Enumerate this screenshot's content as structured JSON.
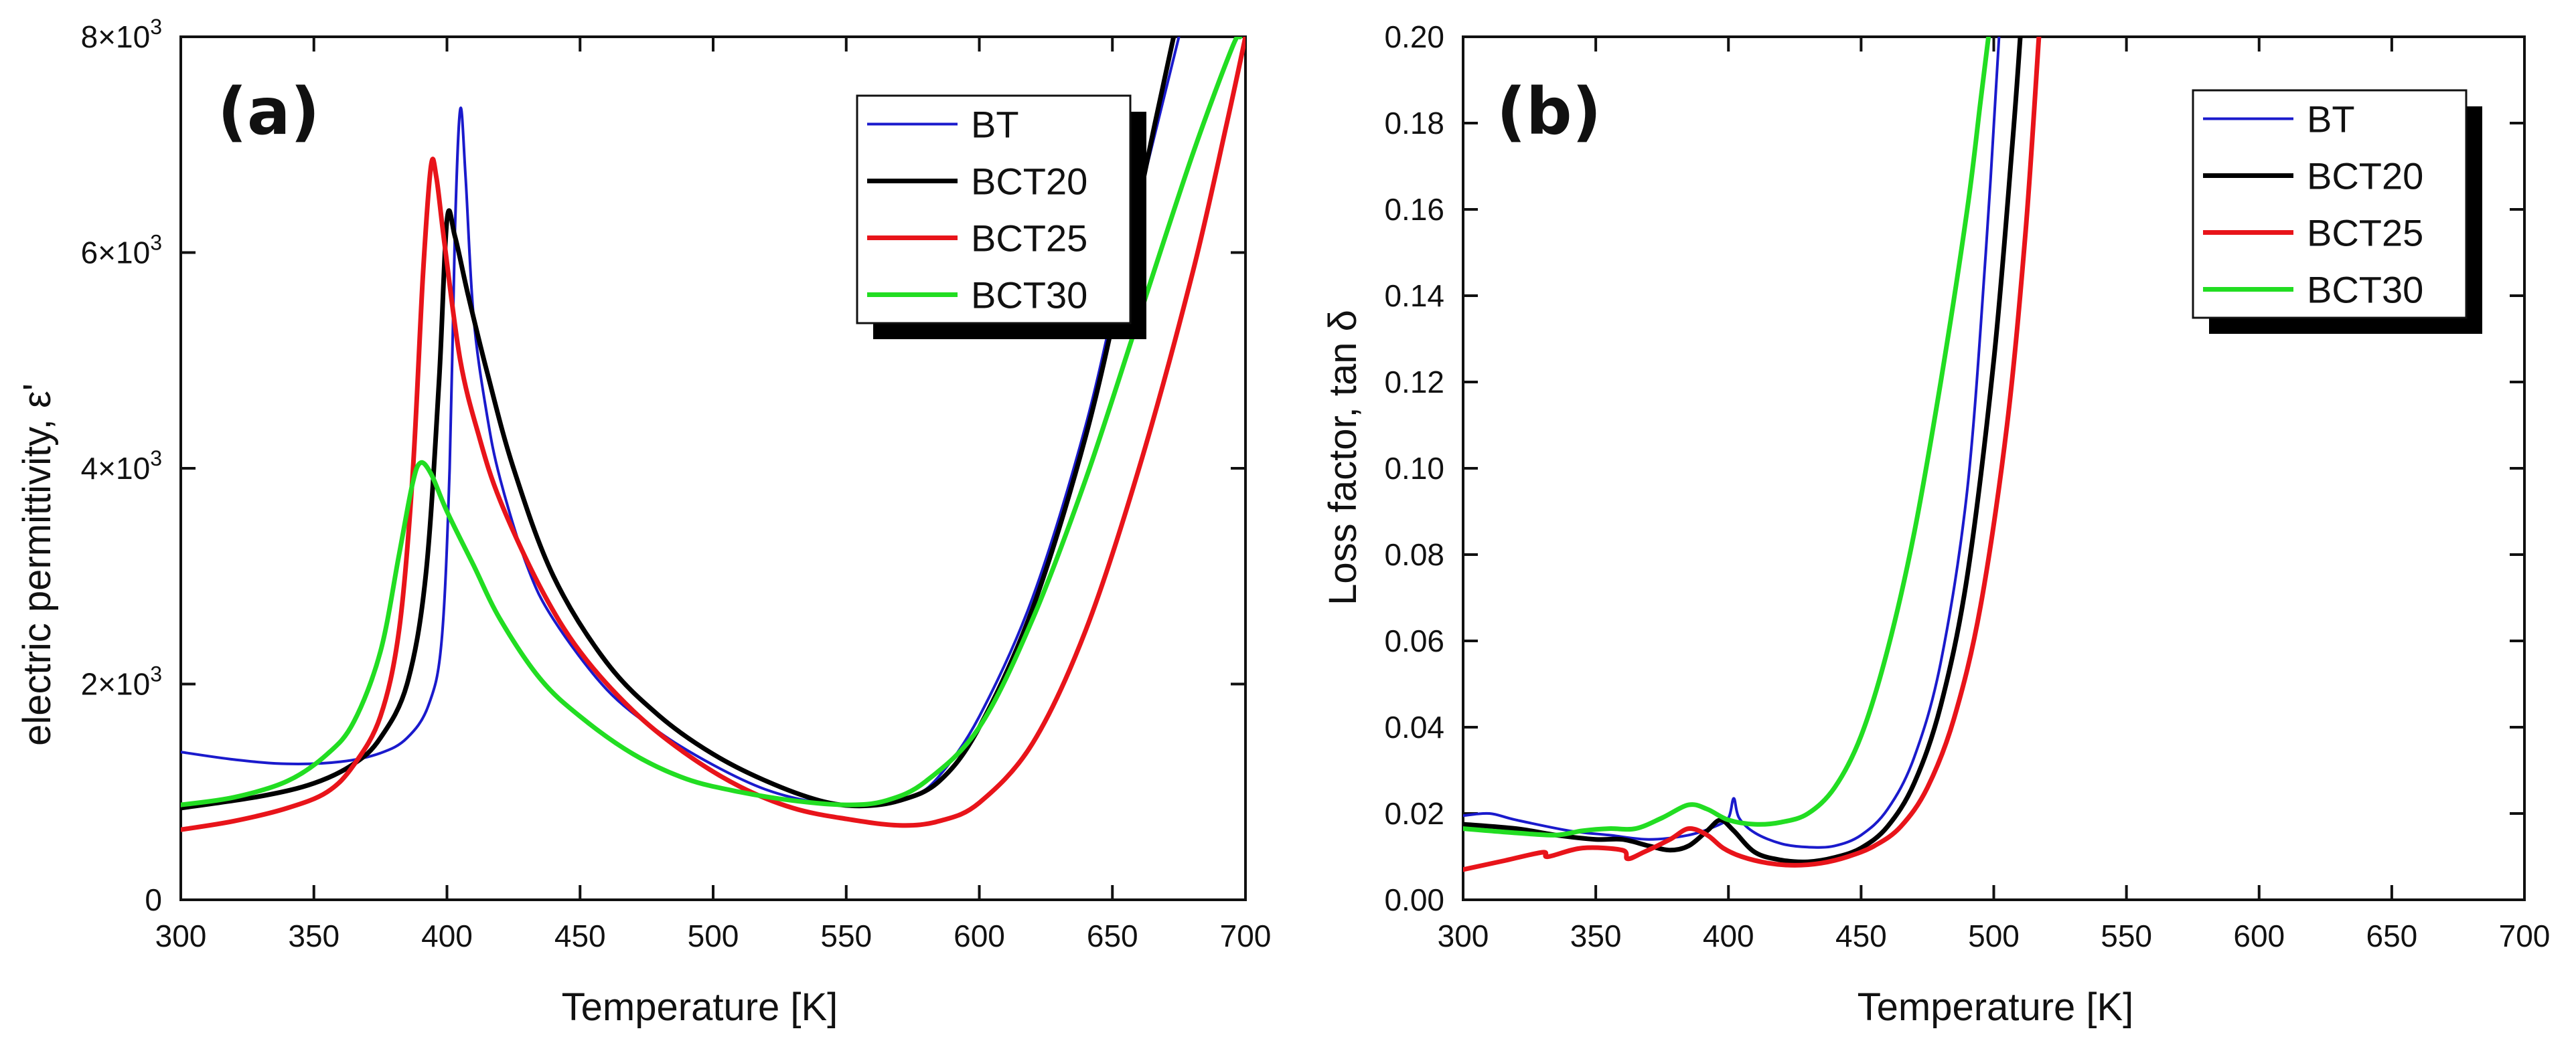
{
  "chart_data": [
    {
      "panel_label": "(a)",
      "type": "line",
      "xlabel": "Temperature [K]",
      "ylabel": "electric permittivity, ε'",
      "xlim": [
        300,
        700
      ],
      "ylim": [
        0,
        8000
      ],
      "xticks": [
        300,
        350,
        400,
        450,
        500,
        550,
        600,
        650,
        700
      ],
      "xtick_labels": [
        "300",
        "350",
        "400",
        "450",
        "500",
        "550",
        "600",
        "650",
        "700"
      ],
      "yticks": [
        0,
        2000,
        4000,
        6000,
        8000
      ],
      "ytick_labels": [
        {
          "base": "0",
          "exp": ""
        },
        {
          "base": "2×10",
          "exp": "3"
        },
        {
          "base": "4×10",
          "exp": "3"
        },
        {
          "base": "6×10",
          "exp": "3"
        },
        {
          "base": "8×10",
          "exp": "3"
        }
      ],
      "legend_position": "top-right",
      "series": [
        {
          "name": "BT",
          "color": "#1a1acc",
          "width": 4,
          "points": [
            [
              300,
              1370
            ],
            [
              320,
              1300
            ],
            [
              340,
              1260
            ],
            [
              360,
              1280
            ],
            [
              375,
              1360
            ],
            [
              385,
              1500
            ],
            [
              393,
              1800
            ],
            [
              398,
              2400
            ],
            [
              401,
              4000
            ],
            [
              403,
              6200
            ],
            [
              405,
              7330
            ],
            [
              407,
              6700
            ],
            [
              410,
              5400
            ],
            [
              415,
              4500
            ],
            [
              420,
              3900
            ],
            [
              430,
              3100
            ],
            [
              440,
              2600
            ],
            [
              460,
              1950
            ],
            [
              480,
              1550
            ],
            [
              500,
              1250
            ],
            [
              520,
              1020
            ],
            [
              540,
              900
            ],
            [
              560,
              880
            ],
            [
              575,
              960
            ],
            [
              585,
              1150
            ],
            [
              600,
              1700
            ],
            [
              620,
              2800
            ],
            [
              640,
              4400
            ],
            [
              655,
              6000
            ],
            [
              668,
              7300
            ],
            [
              675,
              8000
            ]
          ]
        },
        {
          "name": "BCT20",
          "color": "#000000",
          "width": 7,
          "points": [
            [
              300,
              850
            ],
            [
              330,
              960
            ],
            [
              350,
              1080
            ],
            [
              365,
              1260
            ],
            [
              375,
              1500
            ],
            [
              385,
              2000
            ],
            [
              392,
              3000
            ],
            [
              397,
              4800
            ],
            [
              400,
              6300
            ],
            [
              403,
              6150
            ],
            [
              408,
              5600
            ],
            [
              415,
              4900
            ],
            [
              425,
              4000
            ],
            [
              440,
              3000
            ],
            [
              460,
              2200
            ],
            [
              480,
              1700
            ],
            [
              500,
              1350
            ],
            [
              520,
              1100
            ],
            [
              540,
              920
            ],
            [
              555,
              870
            ],
            [
              570,
              920
            ],
            [
              585,
              1100
            ],
            [
              600,
              1600
            ],
            [
              620,
              2700
            ],
            [
              640,
              4300
            ],
            [
              655,
              5900
            ],
            [
              666,
              7200
            ],
            [
              673,
              8000
            ]
          ]
        },
        {
          "name": "BCT25",
          "color": "#e8141a",
          "width": 7,
          "points": [
            [
              300,
              650
            ],
            [
              320,
              730
            ],
            [
              340,
              850
            ],
            [
              355,
              1000
            ],
            [
              365,
              1250
            ],
            [
              375,
              1700
            ],
            [
              382,
              2500
            ],
            [
              387,
              3900
            ],
            [
              391,
              5800
            ],
            [
              394,
              6800
            ],
            [
              396,
              6700
            ],
            [
              399,
              6100
            ],
            [
              405,
              5000
            ],
            [
              412,
              4300
            ],
            [
              420,
              3700
            ],
            [
              435,
              2900
            ],
            [
              450,
              2300
            ],
            [
              470,
              1750
            ],
            [
              490,
              1350
            ],
            [
              510,
              1050
            ],
            [
              530,
              850
            ],
            [
              550,
              750
            ],
            [
              570,
              690
            ],
            [
              585,
              730
            ],
            [
              600,
              900
            ],
            [
              620,
              1450
            ],
            [
              640,
              2500
            ],
            [
              660,
              4000
            ],
            [
              680,
              5800
            ],
            [
              693,
              7200
            ],
            [
              700,
              8000
            ]
          ]
        },
        {
          "name": "BCT30",
          "color": "#22dd22",
          "width": 7,
          "points": [
            [
              300,
              880
            ],
            [
              320,
              950
            ],
            [
              340,
              1100
            ],
            [
              355,
              1350
            ],
            [
              365,
              1650
            ],
            [
              375,
              2300
            ],
            [
              382,
              3200
            ],
            [
              387,
              3850
            ],
            [
              390,
              4050
            ],
            [
              394,
              3950
            ],
            [
              400,
              3600
            ],
            [
              410,
              3100
            ],
            [
              420,
              2600
            ],
            [
              435,
              2050
            ],
            [
              450,
              1700
            ],
            [
              470,
              1350
            ],
            [
              490,
              1120
            ],
            [
              510,
              1000
            ],
            [
              530,
              920
            ],
            [
              550,
              880
            ],
            [
              565,
              920
            ],
            [
              580,
              1100
            ],
            [
              600,
              1600
            ],
            [
              620,
              2600
            ],
            [
              640,
              3900
            ],
            [
              660,
              5400
            ],
            [
              680,
              6900
            ],
            [
              695,
              7900
            ],
            [
              698,
              8000
            ]
          ]
        }
      ]
    },
    {
      "panel_label": "(b)",
      "type": "line",
      "xlabel": "Temperature [K]",
      "ylabel": "Loss factor, tan δ",
      "xlim": [
        300,
        700
      ],
      "ylim": [
        0,
        0.2
      ],
      "xticks": [
        300,
        350,
        400,
        450,
        500,
        550,
        600,
        650,
        700
      ],
      "xtick_labels": [
        "300",
        "350",
        "400",
        "450",
        "500",
        "550",
        "600",
        "650",
        "700"
      ],
      "yticks": [
        0,
        0.02,
        0.04,
        0.06,
        0.08,
        0.1,
        0.12,
        0.14,
        0.16,
        0.18,
        0.2
      ],
      "ytick_labels": [
        "0.00",
        "0.02",
        "0.04",
        "0.06",
        "0.08",
        "0.10",
        "0.12",
        "0.14",
        "0.16",
        "0.18",
        "0.20"
      ],
      "legend_position": "top-right",
      "series": [
        {
          "name": "BT",
          "color": "#1a1acc",
          "width": 4,
          "points": [
            [
              300,
              0.0195
            ],
            [
              310,
              0.02
            ],
            [
              320,
              0.0185
            ],
            [
              340,
              0.016
            ],
            [
              355,
              0.015
            ],
            [
              370,
              0.014
            ],
            [
              385,
              0.015
            ],
            [
              395,
              0.017
            ],
            [
              400,
              0.019
            ],
            [
              402,
              0.0235
            ],
            [
              404,
              0.019
            ],
            [
              410,
              0.0155
            ],
            [
              420,
              0.013
            ],
            [
              430,
              0.0122
            ],
            [
              440,
              0.0125
            ],
            [
              450,
              0.015
            ],
            [
              460,
              0.021
            ],
            [
              470,
              0.033
            ],
            [
              480,
              0.055
            ],
            [
              490,
              0.095
            ],
            [
              497,
              0.15
            ],
            [
              502,
              0.2
            ]
          ]
        },
        {
          "name": "BCT20",
          "color": "#000000",
          "width": 7,
          "points": [
            [
              300,
              0.0175
            ],
            [
              320,
              0.0165
            ],
            [
              335,
              0.015
            ],
            [
              350,
              0.014
            ],
            [
              360,
              0.014
            ],
            [
              370,
              0.0125
            ],
            [
              378,
              0.0115
            ],
            [
              385,
              0.0125
            ],
            [
              392,
              0.016
            ],
            [
              397,
              0.0185
            ],
            [
              402,
              0.016
            ],
            [
              410,
              0.011
            ],
            [
              420,
              0.0092
            ],
            [
              430,
              0.0088
            ],
            [
              440,
              0.0098
            ],
            [
              450,
              0.012
            ],
            [
              460,
              0.017
            ],
            [
              470,
              0.027
            ],
            [
              480,
              0.045
            ],
            [
              490,
              0.075
            ],
            [
              500,
              0.125
            ],
            [
              507,
              0.175
            ],
            [
              510,
              0.2
            ]
          ]
        },
        {
          "name": "BCT25",
          "color": "#e8141a",
          "width": 7,
          "points": [
            [
              300,
              0.007
            ],
            [
              315,
              0.009
            ],
            [
              330,
              0.011
            ],
            [
              332,
              0.01
            ],
            [
              345,
              0.012
            ],
            [
              360,
              0.0115
            ],
            [
              362,
              0.0095
            ],
            [
              368,
              0.011
            ],
            [
              378,
              0.014
            ],
            [
              385,
              0.0165
            ],
            [
              392,
              0.015
            ],
            [
              398,
              0.012
            ],
            [
              405,
              0.01
            ],
            [
              415,
              0.0085
            ],
            [
              425,
              0.008
            ],
            [
              435,
              0.0085
            ],
            [
              445,
              0.01
            ],
            [
              455,
              0.0125
            ],
            [
              465,
              0.017
            ],
            [
              475,
              0.026
            ],
            [
              485,
              0.042
            ],
            [
              495,
              0.068
            ],
            [
              505,
              0.11
            ],
            [
              512,
              0.155
            ],
            [
              517,
              0.2
            ]
          ]
        },
        {
          "name": "BCT30",
          "color": "#22dd22",
          "width": 7,
          "points": [
            [
              300,
              0.0165
            ],
            [
              320,
              0.0155
            ],
            [
              335,
              0.015
            ],
            [
              345,
              0.016
            ],
            [
              355,
              0.0165
            ],
            [
              365,
              0.0165
            ],
            [
              375,
              0.019
            ],
            [
              385,
              0.022
            ],
            [
              392,
              0.021
            ],
            [
              400,
              0.0185
            ],
            [
              410,
              0.0175
            ],
            [
              420,
              0.018
            ],
            [
              430,
              0.02
            ],
            [
              440,
              0.026
            ],
            [
              450,
              0.038
            ],
            [
              460,
              0.058
            ],
            [
              470,
              0.085
            ],
            [
              480,
              0.12
            ],
            [
              490,
              0.16
            ],
            [
              495,
              0.185
            ],
            [
              498,
              0.2
            ]
          ]
        }
      ]
    }
  ]
}
